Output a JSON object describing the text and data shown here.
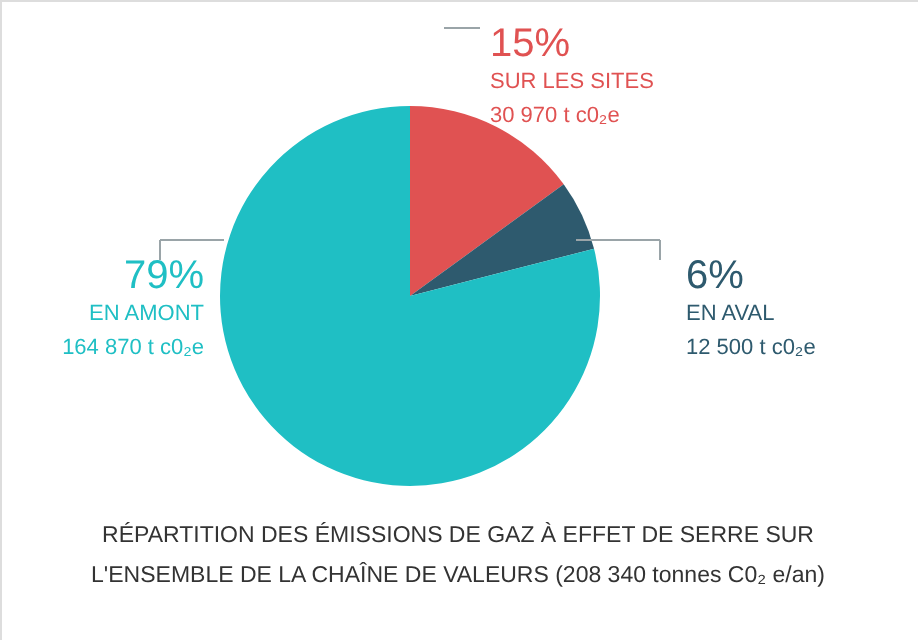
{
  "chart_data": {
    "type": "pie",
    "title": [
      "RÉPARTITION DES ÉMISSIONS DE GAZ À EFFET DE SERRE SUR",
      "L'ENSEMBLE DE LA CHAÎNE DE VALEURS (208 340 tonnes C0₂ e/an)"
    ],
    "categories": [
      "SUR LES SITES",
      "EN AVAL",
      "EN AMONT"
    ],
    "values": [
      15,
      6,
      79
    ],
    "colors": [
      "#e05252",
      "#2e5a6e",
      "#1fbfc4"
    ],
    "value_labels": [
      "15%",
      "6%",
      "79%"
    ],
    "annotations": [
      "30 970 t c0₂e",
      "12 500 t c0₂e",
      "164 870 t c0₂e"
    ]
  }
}
